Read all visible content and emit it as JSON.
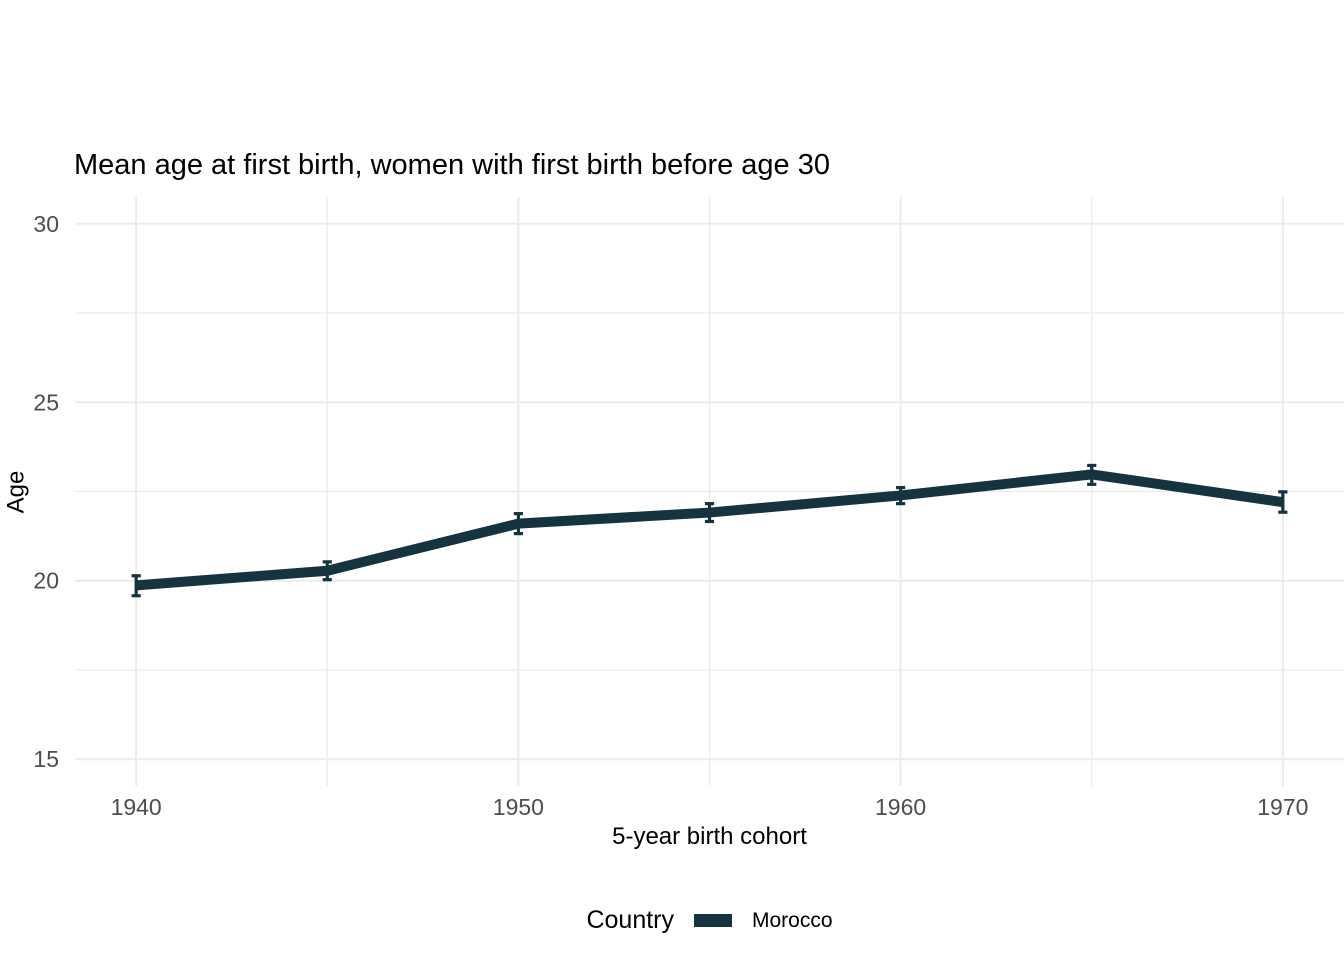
{
  "chart_data": {
    "type": "line",
    "title": "Mean age at first birth, women with first birth before age 30",
    "xlabel": "5-year birth cohort",
    "ylabel": "Age",
    "x": [
      1940,
      1945,
      1950,
      1955,
      1960,
      1965,
      1970
    ],
    "series": [
      {
        "name": "Morocco",
        "values": [
          19.87,
          20.28,
          21.6,
          21.91,
          22.39,
          22.98,
          22.2
        ],
        "ymin": [
          19.58,
          20.03,
          21.32,
          21.66,
          22.16,
          22.7,
          21.92
        ],
        "ymax": [
          20.14,
          20.53,
          21.88,
          22.16,
          22.61,
          23.23,
          22.49
        ],
        "color": "#153440"
      }
    ],
    "xlim": [
      1938.4,
      1971.6
    ],
    "ylim": [
      14.25,
      30.75
    ],
    "x_major_ticks": [
      1940,
      1950,
      1960,
      1970
    ],
    "x_minor_ticks": [
      1945,
      1955,
      1965
    ],
    "y_major_ticks": [
      15,
      20,
      25,
      30
    ],
    "y_minor_ticks": [
      17.5,
      22.5,
      27.5
    ],
    "grid": "on",
    "legend": {
      "title": "Country",
      "position": "bottom",
      "entries": [
        "Morocco"
      ]
    },
    "colors": {
      "grid": "#EBEBEB",
      "tick_label": "#4D4D4D",
      "text": "#000000",
      "background": "#FFFFFF"
    }
  }
}
